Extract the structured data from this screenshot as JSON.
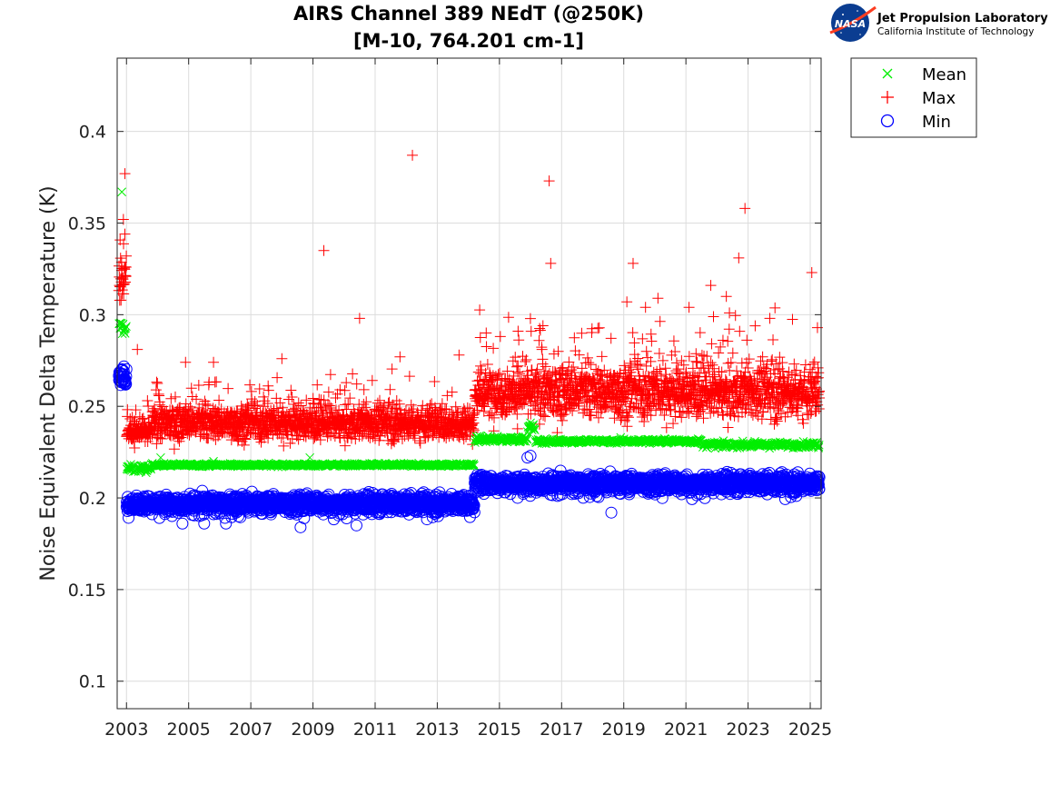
{
  "logo": {
    "org_name": "Jet Propulsion Laboratory",
    "org_sub": "California Institute of Technology",
    "badge_text": "NASA"
  },
  "chart_data": {
    "type": "scatter",
    "title": [
      "AIRS Channel 389 NEdT (@250K)",
      "[M-10, 764.201 cm-1]"
    ],
    "xlabel": "",
    "ylabel": "Noise Equivalent Delta Temperature (K)",
    "xlim": [
      2002.7,
      2025.35
    ],
    "ylim": [
      0.085,
      0.44
    ],
    "xticks": [
      2003,
      2005,
      2007,
      2009,
      2011,
      2013,
      2015,
      2017,
      2019,
      2021,
      2023,
      2025
    ],
    "xtick_labels": [
      "2003",
      "2005",
      "2007",
      "2009",
      "2011",
      "2013",
      "2015",
      "2017",
      "2019",
      "2021",
      "2023",
      "2025"
    ],
    "yticks": [
      0.1,
      0.15,
      0.2,
      0.25,
      0.3,
      0.35,
      0.4
    ],
    "ytick_labels": [
      "0.1",
      "0.15",
      "0.2",
      "0.25",
      "0.3",
      "0.35",
      "0.4"
    ],
    "grid": true,
    "legend_position": "outside-top-right",
    "series": [
      {
        "name": "Mean",
        "marker": "x",
        "color": "#00ee00",
        "segments": [
          {
            "x0": 2002.75,
            "x1": 2003.0,
            "base": 0.293,
            "spread": 0.004
          },
          {
            "x0": 2003.0,
            "x1": 2003.8,
            "base": 0.216,
            "spread": 0.002
          },
          {
            "x0": 2003.8,
            "x1": 2014.2,
            "base": 0.218,
            "spread": 0.0008
          },
          {
            "x0": 2014.2,
            "x1": 2015.9,
            "base": 0.232,
            "spread": 0.0015
          },
          {
            "x0": 2015.9,
            "x1": 2016.15,
            "base": 0.238,
            "spread": 0.002
          },
          {
            "x0": 2016.15,
            "x1": 2021.5,
            "base": 0.231,
            "spread": 0.0012
          },
          {
            "x0": 2021.5,
            "x1": 2025.3,
            "base": 0.229,
            "spread": 0.0015
          }
        ],
        "outliers": [
          {
            "x": 2002.85,
            "y": 0.367
          },
          {
            "x": 2004.1,
            "y": 0.222
          },
          {
            "x": 2005.8,
            "y": 0.22
          },
          {
            "x": 2008.9,
            "y": 0.222
          },
          {
            "x": 2016.0,
            "y": 0.241
          },
          {
            "x": 2018.9,
            "y": 0.233
          }
        ]
      },
      {
        "name": "Max",
        "marker": "+",
        "color": "#ff0000",
        "segments": [
          {
            "x0": 2002.75,
            "x1": 2003.0,
            "base": 0.32,
            "spread": 0.012
          },
          {
            "x0": 2003.0,
            "x1": 2003.8,
            "base": 0.236,
            "spread": 0.006
          },
          {
            "x0": 2003.8,
            "x1": 2014.2,
            "base": 0.241,
            "spread": 0.009
          },
          {
            "x0": 2014.2,
            "x1": 2025.3,
            "base": 0.258,
            "spread": 0.014
          }
        ],
        "outliers": [
          {
            "x": 2002.95,
            "y": 0.377
          },
          {
            "x": 2002.9,
            "y": 0.352
          },
          {
            "x": 2003.35,
            "y": 0.281
          },
          {
            "x": 2004.9,
            "y": 0.274
          },
          {
            "x": 2005.8,
            "y": 0.274
          },
          {
            "x": 2008.0,
            "y": 0.276
          },
          {
            "x": 2009.35,
            "y": 0.335
          },
          {
            "x": 2010.5,
            "y": 0.298
          },
          {
            "x": 2011.8,
            "y": 0.277
          },
          {
            "x": 2012.2,
            "y": 0.387
          },
          {
            "x": 2013.7,
            "y": 0.278
          },
          {
            "x": 2015.6,
            "y": 0.291
          },
          {
            "x": 2016.4,
            "y": 0.294
          },
          {
            "x": 2016.6,
            "y": 0.373
          },
          {
            "x": 2016.65,
            "y": 0.328
          },
          {
            "x": 2019.1,
            "y": 0.307
          },
          {
            "x": 2019.3,
            "y": 0.328
          },
          {
            "x": 2019.7,
            "y": 0.304
          },
          {
            "x": 2020.1,
            "y": 0.309
          },
          {
            "x": 2021.1,
            "y": 0.304
          },
          {
            "x": 2021.8,
            "y": 0.316
          },
          {
            "x": 2022.3,
            "y": 0.31
          },
          {
            "x": 2022.4,
            "y": 0.301
          },
          {
            "x": 2022.7,
            "y": 0.331
          },
          {
            "x": 2022.9,
            "y": 0.358
          },
          {
            "x": 2023.7,
            "y": 0.298
          },
          {
            "x": 2025.05,
            "y": 0.323
          }
        ]
      },
      {
        "name": "Min",
        "marker": "o",
        "color": "#0000ff",
        "segments": [
          {
            "x0": 2002.75,
            "x1": 2003.0,
            "base": 0.266,
            "spread": 0.005
          },
          {
            "x0": 2003.0,
            "x1": 2014.2,
            "base": 0.197,
            "spread": 0.0045
          },
          {
            "x0": 2014.2,
            "x1": 2025.3,
            "base": 0.208,
            "spread": 0.0045
          }
        ],
        "outliers": [
          {
            "x": 2004.8,
            "y": 0.186
          },
          {
            "x": 2005.5,
            "y": 0.186
          },
          {
            "x": 2006.2,
            "y": 0.186
          },
          {
            "x": 2008.6,
            "y": 0.184
          },
          {
            "x": 2010.4,
            "y": 0.185
          },
          {
            "x": 2015.9,
            "y": 0.222
          },
          {
            "x": 2016.0,
            "y": 0.223
          },
          {
            "x": 2018.6,
            "y": 0.192
          }
        ]
      }
    ]
  }
}
